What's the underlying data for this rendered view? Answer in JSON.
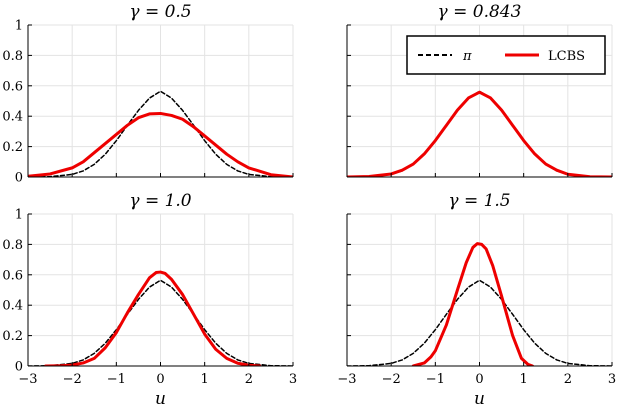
{
  "chart_data": [
    {
      "type": "line",
      "title": "γ = 0.5",
      "xlabel": "",
      "xlim": [
        -3,
        3
      ],
      "ylim": [
        0,
        1
      ],
      "xticks": [
        -3,
        -2,
        -1,
        0,
        1,
        2,
        3
      ],
      "yticks": [
        0,
        0.2,
        0.4,
        0.6,
        0.8,
        1
      ],
      "show_xtick_labels": false,
      "show_ytick_labels": true,
      "grid": true,
      "series": [
        {
          "name": "π",
          "style": "dashed",
          "color": "#000000",
          "x": [
            -3,
            -2.5,
            -2,
            -1.75,
            -1.5,
            -1.25,
            -1,
            -0.75,
            -0.5,
            -0.25,
            0,
            0.25,
            0.5,
            0.75,
            1,
            1.25,
            1.5,
            1.75,
            2,
            2.5,
            3
          ],
          "y": [
            0.0,
            0.002,
            0.017,
            0.04,
            0.083,
            0.15,
            0.239,
            0.34,
            0.438,
            0.519,
            0.564,
            0.519,
            0.438,
            0.34,
            0.239,
            0.15,
            0.083,
            0.04,
            0.017,
            0.002,
            0.0
          ]
        },
        {
          "name": "LCBS",
          "style": "solid",
          "color": "#ee0000",
          "x": [
            -3,
            -2.5,
            -2,
            -1.75,
            -1.5,
            -1.25,
            -1,
            -0.75,
            -0.5,
            -0.25,
            0,
            0.25,
            0.5,
            0.75,
            1,
            1.25,
            1.5,
            1.75,
            2,
            2.5,
            3
          ],
          "y": [
            0.005,
            0.02,
            0.06,
            0.1,
            0.16,
            0.22,
            0.28,
            0.34,
            0.39,
            0.415,
            0.418,
            0.405,
            0.38,
            0.33,
            0.27,
            0.21,
            0.15,
            0.1,
            0.06,
            0.015,
            0.0
          ]
        }
      ]
    },
    {
      "type": "line",
      "title": "γ = 0.843",
      "xlabel": "",
      "xlim": [
        -3,
        3
      ],
      "ylim": [
        0,
        1
      ],
      "xticks": [
        -3,
        -2,
        -1,
        0,
        1,
        2,
        3
      ],
      "yticks": [
        0,
        0.2,
        0.4,
        0.6,
        0.8,
        1
      ],
      "show_xtick_labels": false,
      "show_ytick_labels": false,
      "grid": true,
      "legend": {
        "position": "top-right",
        "entries": [
          "π",
          "LCBS"
        ]
      },
      "series": [
        {
          "name": "π",
          "style": "dashed",
          "color": "#000000",
          "x": [
            -3,
            -2.5,
            -2,
            -1.75,
            -1.5,
            -1.25,
            -1,
            -0.75,
            -0.5,
            -0.25,
            0,
            0.25,
            0.5,
            0.75,
            1,
            1.25,
            1.5,
            1.75,
            2,
            2.5,
            3
          ],
          "y": [
            0.0,
            0.002,
            0.017,
            0.04,
            0.083,
            0.15,
            0.239,
            0.34,
            0.438,
            0.519,
            0.564,
            0.519,
            0.438,
            0.34,
            0.239,
            0.15,
            0.083,
            0.04,
            0.017,
            0.002,
            0.0
          ]
        },
        {
          "name": "LCBS",
          "style": "solid",
          "color": "#ee0000",
          "x": [
            -3,
            -2.5,
            -2,
            -1.75,
            -1.5,
            -1.25,
            -1,
            -0.75,
            -0.5,
            -0.25,
            0,
            0.25,
            0.5,
            0.75,
            1,
            1.25,
            1.5,
            1.75,
            2,
            2.5,
            3
          ],
          "y": [
            0.0,
            0.003,
            0.02,
            0.045,
            0.085,
            0.152,
            0.24,
            0.34,
            0.44,
            0.52,
            0.558,
            0.52,
            0.44,
            0.34,
            0.24,
            0.152,
            0.085,
            0.045,
            0.018,
            0.002,
            0.0
          ]
        }
      ]
    },
    {
      "type": "line",
      "title": "γ = 1.0",
      "xlabel": "u",
      "xlim": [
        -3,
        3
      ],
      "ylim": [
        0,
        1
      ],
      "xticks": [
        -3,
        -2,
        -1,
        0,
        1,
        2,
        3
      ],
      "yticks": [
        0,
        0.2,
        0.4,
        0.6,
        0.8,
        1
      ],
      "show_xtick_labels": true,
      "show_ytick_labels": true,
      "grid": true,
      "series": [
        {
          "name": "π",
          "style": "dashed",
          "color": "#000000",
          "x": [
            -3,
            -2.5,
            -2,
            -1.75,
            -1.5,
            -1.25,
            -1,
            -0.75,
            -0.5,
            -0.25,
            0,
            0.25,
            0.5,
            0.75,
            1,
            1.25,
            1.5,
            1.75,
            2,
            2.5,
            3
          ],
          "y": [
            0.0,
            0.002,
            0.017,
            0.04,
            0.083,
            0.15,
            0.239,
            0.34,
            0.438,
            0.519,
            0.564,
            0.519,
            0.438,
            0.34,
            0.239,
            0.15,
            0.083,
            0.04,
            0.017,
            0.002,
            0.0
          ]
        },
        {
          "name": "LCBS",
          "style": "solid",
          "color": "#ee0000",
          "x": [
            -2.6,
            -2.25,
            -2,
            -1.75,
            -1.5,
            -1.25,
            -1,
            -0.75,
            -0.5,
            -0.25,
            -0.1,
            0,
            0.1,
            0.25,
            0.5,
            0.75,
            1,
            1.25,
            1.5,
            1.75,
            2,
            2.25
          ],
          "y": [
            0.0,
            0.002,
            0.006,
            0.02,
            0.05,
            0.12,
            0.22,
            0.35,
            0.47,
            0.58,
            0.615,
            0.618,
            0.61,
            0.57,
            0.47,
            0.34,
            0.21,
            0.11,
            0.05,
            0.018,
            0.005,
            0.0
          ]
        }
      ]
    },
    {
      "type": "line",
      "title": "γ = 1.5",
      "xlabel": "u",
      "xlim": [
        -3,
        3
      ],
      "ylim": [
        0,
        1
      ],
      "xticks": [
        -3,
        -2,
        -1,
        0,
        1,
        2,
        3
      ],
      "yticks": [
        0,
        0.2,
        0.4,
        0.6,
        0.8,
        1
      ],
      "show_xtick_labels": true,
      "show_ytick_labels": false,
      "grid": true,
      "series": [
        {
          "name": "π",
          "style": "dashed",
          "color": "#000000",
          "x": [
            -3,
            -2.5,
            -2,
            -1.75,
            -1.5,
            -1.25,
            -1,
            -0.75,
            -0.5,
            -0.25,
            0,
            0.25,
            0.5,
            0.75,
            1,
            1.25,
            1.5,
            1.75,
            2,
            2.5,
            3
          ],
          "y": [
            0.0,
            0.002,
            0.017,
            0.04,
            0.083,
            0.15,
            0.239,
            0.34,
            0.438,
            0.519,
            0.564,
            0.519,
            0.438,
            0.34,
            0.239,
            0.15,
            0.083,
            0.04,
            0.017,
            0.002,
            0.0
          ]
        },
        {
          "name": "LCBS",
          "style": "solid",
          "color": "#ee0000",
          "x": [
            -1.5,
            -1.25,
            -1.1,
            -1,
            -0.75,
            -0.5,
            -0.3,
            -0.15,
            -0.05,
            0.05,
            0.15,
            0.3,
            0.5,
            0.75,
            0.95,
            1.1,
            1.2
          ],
          "y": [
            0.0,
            0.02,
            0.06,
            0.1,
            0.27,
            0.5,
            0.68,
            0.78,
            0.805,
            0.8,
            0.77,
            0.66,
            0.46,
            0.2,
            0.05,
            0.01,
            0.0
          ]
        }
      ]
    }
  ]
}
